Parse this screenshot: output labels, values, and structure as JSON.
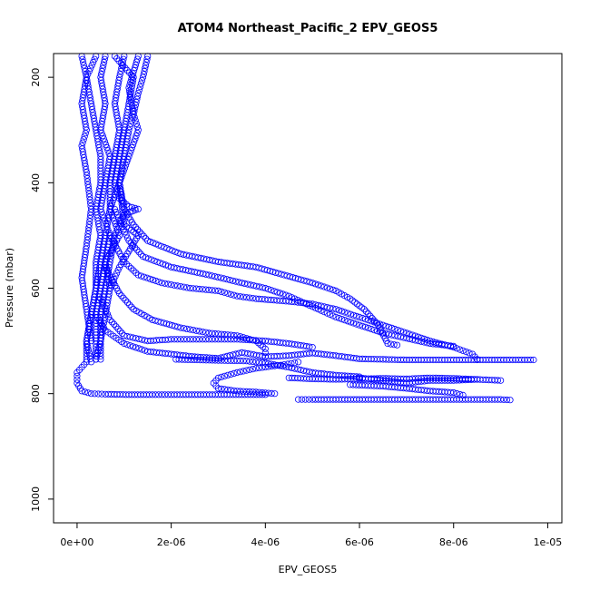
{
  "chart_data": {
    "type": "scatter",
    "title": "ATOM4 Northeast_Pacific_2 EPV_GEOS5",
    "xlabel": "EPV_GEOS5",
    "ylabel": "Pressure (mbar)",
    "xlim": [
      -5e-07,
      1.03e-05
    ],
    "ylim": [
      1045,
      155
    ],
    "y_reversed": true,
    "grid": false,
    "marker": "open-circle",
    "color": "#0000ff",
    "xticks": [
      0,
      2e-06,
      4e-06,
      6e-06,
      8e-06,
      1e-05
    ],
    "xtick_labels": [
      "0e+00",
      "2e-06",
      "4e-06",
      "6e-06",
      "8e-06",
      "1e-05"
    ],
    "yticks": [
      200,
      400,
      600,
      800,
      1000
    ],
    "ytick_labels": [
      "200",
      "400",
      "600",
      "800",
      "1000"
    ],
    "series": [
      {
        "profile": 1,
        "points": [
          [
            4e-07,
            160
          ],
          [
            2e-07,
            200
          ],
          [
            3e-07,
            250
          ],
          [
            4e-07,
            300
          ],
          [
            5e-07,
            350
          ],
          [
            5e-07,
            400
          ],
          [
            4e-07,
            450
          ],
          [
            5e-07,
            500
          ],
          [
            4e-07,
            550
          ],
          [
            4e-07,
            600
          ],
          [
            3e-07,
            650
          ],
          [
            2e-07,
            700
          ],
          [
            2e-07,
            735
          ]
        ]
      },
      {
        "profile": 2,
        "points": [
          [
            6e-07,
            160
          ],
          [
            5e-07,
            200
          ],
          [
            6e-07,
            250
          ],
          [
            5e-07,
            300
          ],
          [
            7e-07,
            350
          ],
          [
            6e-07,
            400
          ],
          [
            5e-07,
            450
          ],
          [
            7e-07,
            500
          ],
          [
            6e-07,
            550
          ],
          [
            5e-07,
            600
          ],
          [
            4e-07,
            650
          ],
          [
            4e-07,
            700
          ],
          [
            4e-07,
            735
          ]
        ]
      },
      {
        "profile": 3,
        "points": [
          [
            1e-06,
            160
          ],
          [
            9e-07,
            200
          ],
          [
            8e-07,
            250
          ],
          [
            9e-07,
            300
          ],
          [
            8e-07,
            350
          ],
          [
            7e-07,
            400
          ],
          [
            7e-07,
            450
          ],
          [
            9e-07,
            500
          ],
          [
            6e-07,
            550
          ],
          [
            7e-07,
            600
          ],
          [
            6e-07,
            650
          ],
          [
            5e-07,
            700
          ],
          [
            5e-07,
            735
          ]
        ]
      },
      {
        "profile": 4,
        "points": [
          [
            8e-07,
            160
          ],
          [
            1.2e-06,
            200
          ],
          [
            1.1e-06,
            250
          ],
          [
            1e-06,
            300
          ],
          [
            9e-07,
            350
          ],
          [
            8e-07,
            400
          ],
          [
            9e-07,
            430
          ],
          [
            1.1e-06,
            445
          ],
          [
            1.3e-06,
            450
          ],
          [
            1e-06,
            460
          ],
          [
            8e-07,
            500
          ],
          [
            7e-07,
            550
          ],
          [
            6e-07,
            600
          ],
          [
            5e-07,
            650
          ],
          [
            5e-07,
            700
          ],
          [
            4e-07,
            735
          ]
        ]
      },
      {
        "profile": 5,
        "points": [
          [
            1.5e-06,
            160
          ],
          [
            1.4e-06,
            200
          ],
          [
            1.3e-06,
            230
          ],
          [
            1.2e-06,
            270
          ],
          [
            1.1e-06,
            300
          ],
          [
            1e-06,
            350
          ],
          [
            9e-07,
            400
          ],
          [
            1e-06,
            480
          ],
          [
            1.3e-06,
            500
          ],
          [
            1.1e-06,
            530
          ],
          [
            9e-07,
            560
          ],
          [
            7e-07,
            600
          ]
        ]
      },
      {
        "profile": 6,
        "points": [
          [
            1.3e-06,
            160
          ],
          [
            1.1e-06,
            220
          ],
          [
            1.2e-06,
            270
          ],
          [
            1.3e-06,
            300
          ],
          [
            1.1e-06,
            350
          ],
          [
            9e-07,
            400
          ],
          [
            7e-07,
            450
          ],
          [
            6e-07,
            500
          ],
          [
            5e-07,
            550
          ],
          [
            4e-07,
            600
          ],
          [
            3e-07,
            650
          ],
          [
            2e-07,
            700
          ],
          [
            3e-07,
            740
          ]
        ]
      },
      {
        "profile": 7,
        "points": [
          [
            1e-07,
            160
          ],
          [
            2e-07,
            200
          ],
          [
            1e-07,
            250
          ],
          [
            2e-07,
            300
          ],
          [
            1e-07,
            330
          ],
          [
            2e-07,
            380
          ],
          [
            3e-07,
            450
          ],
          [
            2e-07,
            520
          ],
          [
            1e-07,
            580
          ],
          [
            2e-07,
            640
          ],
          [
            3e-07,
            700
          ]
        ]
      },
      {
        "profile": 8,
        "points": [
          [
            9e-07,
            400
          ],
          [
            1e-06,
            450
          ],
          [
            1.2e-06,
            480
          ],
          [
            1.5e-06,
            510
          ],
          [
            2.2e-06,
            535
          ],
          [
            3e-06,
            550
          ],
          [
            3.8e-06,
            560
          ],
          [
            4.4e-06,
            575
          ],
          [
            5e-06,
            590
          ],
          [
            5.5e-06,
            605
          ],
          [
            5.8e-06,
            620
          ],
          [
            6.1e-06,
            640
          ],
          [
            6.4e-06,
            670
          ],
          [
            6.6e-06,
            705
          ],
          [
            6.8e-06,
            708
          ]
        ]
      },
      {
        "profile": 9,
        "points": [
          [
            8e-07,
            450
          ],
          [
            1.1e-06,
            510
          ],
          [
            1.4e-06,
            540
          ],
          [
            2e-06,
            560
          ],
          [
            2.8e-06,
            575
          ],
          [
            3.5e-06,
            590
          ],
          [
            4e-06,
            600
          ],
          [
            4.5e-06,
            615
          ],
          [
            5e-06,
            635
          ],
          [
            5.5e-06,
            655
          ],
          [
            6e-06,
            670
          ],
          [
            6.5e-06,
            685
          ],
          [
            7e-06,
            695
          ],
          [
            7.5e-06,
            705
          ],
          [
            8e-06,
            710
          ]
        ]
      },
      {
        "profile": 10,
        "points": [
          [
            7e-07,
            500
          ],
          [
            1e-06,
            550
          ],
          [
            1.3e-06,
            575
          ],
          [
            1.8e-06,
            590
          ],
          [
            2.4e-06,
            600
          ],
          [
            3e-06,
            605
          ],
          [
            3.4e-06,
            615
          ],
          [
            3.8e-06,
            620
          ],
          [
            4.5e-06,
            625
          ],
          [
            5e-06,
            630
          ],
          [
            5.5e-06,
            640
          ],
          [
            6e-06,
            655
          ],
          [
            6.5e-06,
            670
          ],
          [
            7e-06,
            685
          ],
          [
            7.5e-06,
            700
          ],
          [
            8e-06,
            712
          ],
          [
            8.4e-06,
            725
          ],
          [
            8.5e-06,
            735
          ]
        ]
      },
      {
        "profile": 11,
        "points": [
          [
            6e-07,
            560
          ],
          [
            9e-07,
            610
          ],
          [
            1.2e-06,
            640
          ],
          [
            1.6e-06,
            660
          ],
          [
            2.2e-06,
            675
          ],
          [
            2.8e-06,
            685
          ],
          [
            3.4e-06,
            690
          ],
          [
            3.8e-06,
            700
          ],
          [
            4e-06,
            715
          ],
          [
            4e-06,
            730
          ]
        ]
      },
      {
        "profile": 12,
        "points": [
          [
            5e-07,
            620
          ],
          [
            7e-07,
            660
          ],
          [
            1e-06,
            690
          ],
          [
            1.5e-06,
            700
          ],
          [
            2e-06,
            697
          ],
          [
            2.8e-06,
            697
          ],
          [
            3.4e-06,
            697
          ],
          [
            4e-06,
            700
          ],
          [
            4.5e-06,
            705
          ],
          [
            5e-06,
            712
          ]
        ]
      },
      {
        "profile": 13,
        "points": [
          [
            4e-07,
            650
          ],
          [
            6e-07,
            680
          ],
          [
            1e-06,
            705
          ],
          [
            1.5e-06,
            720
          ],
          [
            2e-06,
            725
          ],
          [
            2.5e-06,
            730
          ],
          [
            3e-06,
            733
          ],
          [
            3.5e-06,
            722
          ],
          [
            4e-06,
            730
          ],
          [
            4.5e-06,
            728
          ],
          [
            5e-06,
            723
          ],
          [
            5.5e-06,
            728
          ],
          [
            6e-06,
            734
          ],
          [
            7e-06,
            736
          ],
          [
            8e-06,
            736
          ],
          [
            9e-06,
            736
          ],
          [
            9.7e-06,
            736
          ]
        ]
      },
      {
        "profile": 14,
        "points": [
          [
            2.1e-06,
            735
          ],
          [
            3e-06,
            737
          ],
          [
            3.6e-06,
            738
          ],
          [
            4e-06,
            742
          ],
          [
            4.5e-06,
            750
          ],
          [
            5e-06,
            760
          ],
          [
            5.5e-06,
            765
          ],
          [
            6e-06,
            768
          ],
          [
            6e-06,
            770
          ],
          [
            6.5e-06,
            775
          ],
          [
            7e-06,
            780
          ],
          [
            7.5e-06,
            775
          ],
          [
            8e-06,
            775
          ],
          [
            8.5e-06,
            773
          ]
        ]
      },
      {
        "profile": 15,
        "points": [
          [
            4.7e-06,
            740
          ],
          [
            4.4e-06,
            745
          ],
          [
            3.8e-06,
            752
          ],
          [
            3.4e-06,
            760
          ],
          [
            3e-06,
            770
          ],
          [
            2.9e-06,
            780
          ],
          [
            3e-06,
            790
          ],
          [
            3.4e-06,
            795
          ],
          [
            3.8e-06,
            797
          ],
          [
            4.2e-06,
            800
          ]
        ]
      },
      {
        "profile": 16,
        "points": [
          [
            4.5e-06,
            770
          ],
          [
            5e-06,
            772
          ],
          [
            5.5e-06,
            773
          ],
          [
            6e-06,
            772
          ],
          [
            6.5e-06,
            771
          ],
          [
            7e-06,
            772
          ],
          [
            7.5e-06,
            770
          ],
          [
            8e-06,
            771
          ],
          [
            9e-06,
            775
          ]
        ]
      },
      {
        "profile": 17,
        "points": [
          [
            5.8e-06,
            783
          ],
          [
            6.5e-06,
            786
          ],
          [
            7e-06,
            790
          ],
          [
            7.5e-06,
            795
          ],
          [
            8e-06,
            798
          ],
          [
            8.2e-06,
            803
          ]
        ]
      },
      {
        "profile": 18,
        "points": [
          [
            4.7e-06,
            811
          ],
          [
            5e-06,
            811
          ],
          [
            5.5e-06,
            811
          ],
          [
            6e-06,
            811
          ],
          [
            6.5e-06,
            811
          ],
          [
            7e-06,
            811
          ],
          [
            7.5e-06,
            811
          ],
          [
            8e-06,
            811
          ],
          [
            8.5e-06,
            811
          ],
          [
            9e-06,
            811
          ],
          [
            9.2e-06,
            812
          ]
        ]
      },
      {
        "profile": 19,
        "points": [
          [
            2e-07,
            740
          ],
          [
            0,
            760
          ],
          [
            0,
            780
          ],
          [
            1e-07,
            795
          ],
          [
            3e-07,
            800
          ],
          [
            6e-07,
            801
          ],
          [
            1.1e-06,
            802
          ],
          [
            1.6e-06,
            802
          ],
          [
            2e-06,
            802
          ],
          [
            2.5e-06,
            802
          ],
          [
            3e-06,
            802
          ],
          [
            3.5e-06,
            802
          ],
          [
            4e-06,
            802
          ]
        ]
      }
    ]
  }
}
